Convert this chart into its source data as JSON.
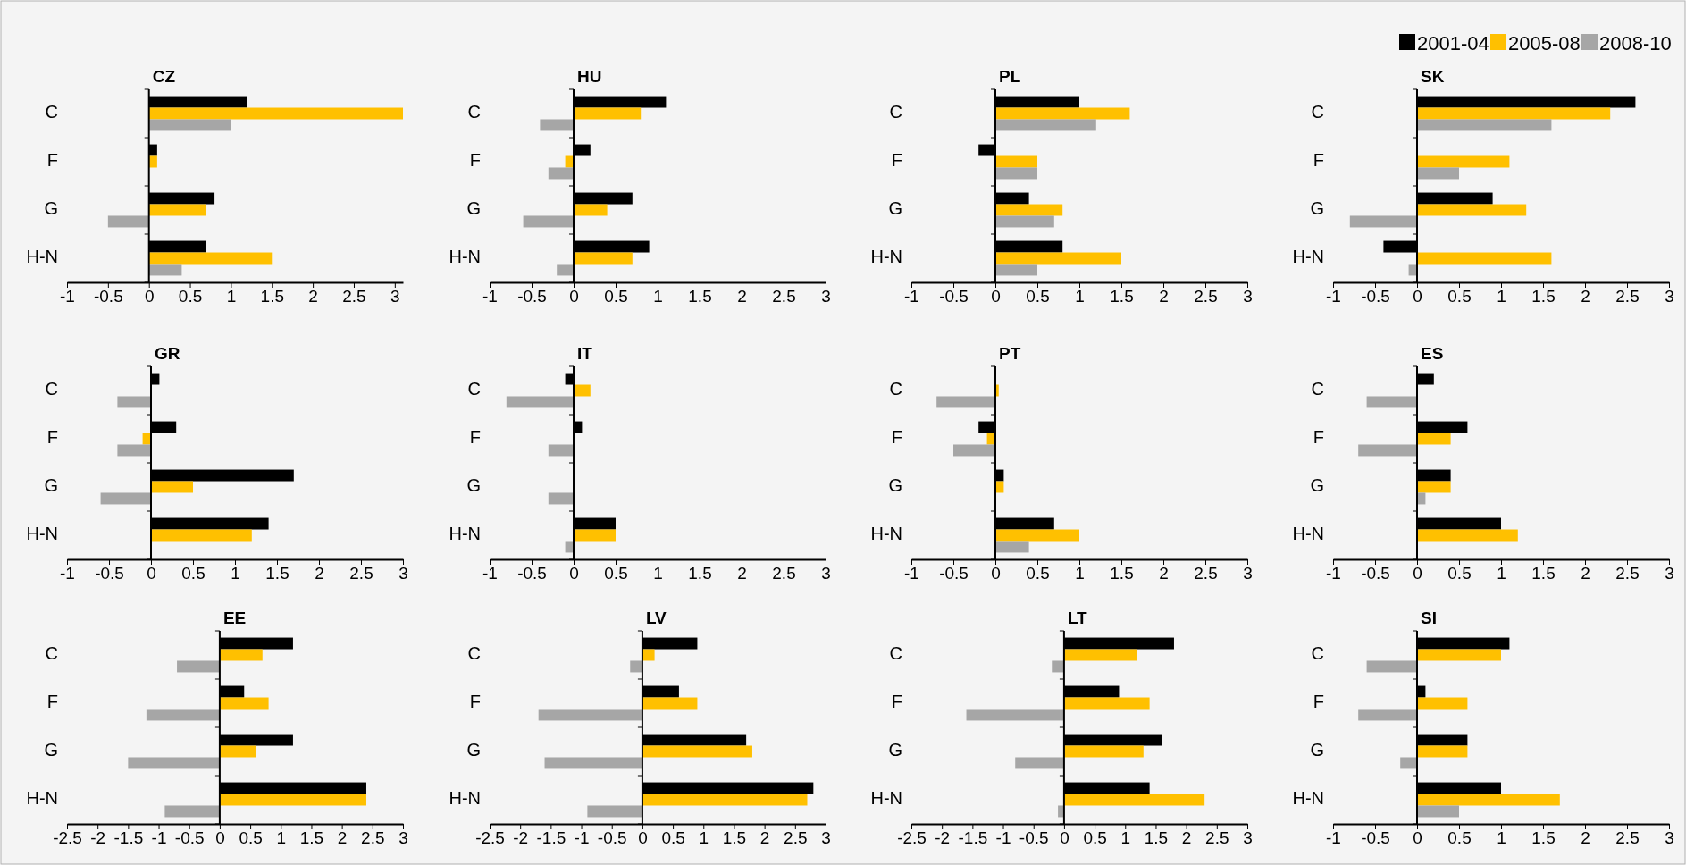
{
  "chart_data": [
    {
      "type": "bar",
      "orientation": "horizontal",
      "title": "CZ",
      "categories": [
        "C",
        "F",
        "G",
        "H-N"
      ],
      "xlim": [
        -1,
        3.1
      ],
      "xticks": [
        -1,
        -0.5,
        0,
        0.5,
        1,
        1.5,
        2,
        2.5,
        3
      ],
      "series": [
        {
          "color": "#000000",
          "values": [
            1.2,
            0.1,
            0.8,
            0.7
          ]
        },
        {
          "color": "#ffc000",
          "values": [
            3.1,
            0.1,
            0.7,
            1.5
          ]
        },
        {
          "color": "#a6a6a6",
          "values": [
            1.0,
            null,
            -0.5,
            0.4
          ]
        }
      ]
    },
    {
      "type": "bar",
      "orientation": "horizontal",
      "title": "HU",
      "categories": [
        "C",
        "F",
        "G",
        "H-N"
      ],
      "xlim": [
        -1,
        3
      ],
      "xticks": [
        -1,
        -0.5,
        0,
        0.5,
        1,
        1.5,
        2,
        2.5,
        3
      ],
      "series": [
        {
          "color": "#000000",
          "values": [
            1.1,
            0.2,
            0.7,
            0.9
          ]
        },
        {
          "color": "#ffc000",
          "values": [
            0.8,
            -0.1,
            0.4,
            0.7
          ]
        },
        {
          "color": "#a6a6a6",
          "values": [
            -0.4,
            -0.3,
            -0.6,
            -0.2
          ]
        }
      ]
    },
    {
      "type": "bar",
      "orientation": "horizontal",
      "title": "PL",
      "categories": [
        "C",
        "F",
        "G",
        "H-N"
      ],
      "xlim": [
        -1,
        3
      ],
      "xticks": [
        -1,
        -0.5,
        0,
        0.5,
        1,
        1.5,
        2,
        2.5,
        3
      ],
      "series": [
        {
          "color": "#000000",
          "values": [
            1.0,
            -0.2,
            0.4,
            0.8
          ]
        },
        {
          "color": "#ffc000",
          "values": [
            1.6,
            0.5,
            0.8,
            1.5
          ]
        },
        {
          "color": "#a6a6a6",
          "values": [
            1.2,
            0.5,
            0.7,
            0.5
          ]
        }
      ]
    },
    {
      "type": "bar",
      "orientation": "horizontal",
      "title": "SK",
      "categories": [
        "C",
        "F",
        "G",
        "H-N"
      ],
      "xlim": [
        -1,
        3
      ],
      "xticks": [
        -1,
        -0.5,
        0,
        0.5,
        1,
        1.5,
        2,
        2.5,
        3
      ],
      "legend": "top right",
      "series": [
        {
          "name": "2001-04",
          "color": "#000000",
          "values": [
            2.6,
            null,
            0.9,
            -0.4
          ]
        },
        {
          "name": "2005-08",
          "color": "#ffc000",
          "values": [
            2.3,
            1.1,
            1.3,
            1.6
          ]
        },
        {
          "name": "2008-10",
          "color": "#a6a6a6",
          "values": [
            1.6,
            0.5,
            -0.8,
            -0.1
          ]
        }
      ]
    },
    {
      "type": "bar",
      "orientation": "horizontal",
      "title": "GR",
      "categories": [
        "C",
        "F",
        "G",
        "H-N"
      ],
      "xlim": [
        -1,
        3
      ],
      "xticks": [
        -1,
        -0.5,
        0,
        0.5,
        1,
        1.5,
        2,
        2.5,
        3
      ],
      "series": [
        {
          "color": "#000000",
          "values": [
            0.1,
            0.3,
            1.7,
            1.4
          ]
        },
        {
          "color": "#ffc000",
          "values": [
            null,
            -0.1,
            0.5,
            1.2
          ]
        },
        {
          "color": "#a6a6a6",
          "values": [
            -0.4,
            -0.4,
            -0.6,
            null
          ]
        }
      ]
    },
    {
      "type": "bar",
      "orientation": "horizontal",
      "title": "IT",
      "categories": [
        "C",
        "F",
        "G",
        "H-N"
      ],
      "xlim": [
        -1,
        3
      ],
      "xticks": [
        -1,
        -0.5,
        0,
        0.5,
        1,
        1.5,
        2,
        2.5,
        3
      ],
      "series": [
        {
          "color": "#000000",
          "values": [
            -0.1,
            0.1,
            null,
            0.5
          ]
        },
        {
          "color": "#ffc000",
          "values": [
            0.2,
            null,
            null,
            0.5
          ]
        },
        {
          "color": "#a6a6a6",
          "values": [
            -0.8,
            -0.3,
            -0.3,
            -0.1
          ]
        }
      ]
    },
    {
      "type": "bar",
      "orientation": "horizontal",
      "title": "PT",
      "categories": [
        "C",
        "F",
        "G",
        "H-N"
      ],
      "xlim": [
        -1,
        3
      ],
      "xticks": [
        -1,
        -0.5,
        0,
        0.5,
        1,
        1.5,
        2,
        2.5,
        3
      ],
      "series": [
        {
          "color": "#000000",
          "values": [
            null,
            -0.2,
            0.1,
            0.7
          ]
        },
        {
          "color": "#ffc000",
          "values": [
            0.04,
            -0.1,
            0.1,
            1.0
          ]
        },
        {
          "color": "#a6a6a6",
          "values": [
            -0.7,
            -0.5,
            null,
            0.4
          ]
        }
      ]
    },
    {
      "type": "bar",
      "orientation": "horizontal",
      "title": "ES",
      "categories": [
        "C",
        "F",
        "G",
        "H-N"
      ],
      "xlim": [
        -1,
        3
      ],
      "xticks": [
        -1,
        -0.5,
        0,
        0.5,
        1,
        1.5,
        2,
        2.5,
        3
      ],
      "series": [
        {
          "color": "#000000",
          "values": [
            0.2,
            0.6,
            0.4,
            1.0
          ]
        },
        {
          "color": "#ffc000",
          "values": [
            null,
            0.4,
            0.4,
            1.2
          ]
        },
        {
          "color": "#a6a6a6",
          "values": [
            -0.6,
            -0.7,
            0.1,
            null
          ]
        }
      ]
    },
    {
      "type": "bar",
      "orientation": "horizontal",
      "title": "EE",
      "categories": [
        "C",
        "F",
        "G",
        "H-N"
      ],
      "xlim": [
        -2.5,
        3
      ],
      "xticks": [
        -2.5,
        -2,
        -1.5,
        -1,
        -0.5,
        0,
        0.5,
        1,
        1.5,
        2,
        2.5,
        3
      ],
      "series": [
        {
          "color": "#000000",
          "values": [
            1.2,
            0.4,
            1.2,
            2.4
          ]
        },
        {
          "color": "#ffc000",
          "values": [
            0.7,
            0.8,
            0.6,
            2.4
          ]
        },
        {
          "color": "#a6a6a6",
          "values": [
            -0.7,
            -1.2,
            -1.5,
            -0.9
          ]
        }
      ]
    },
    {
      "type": "bar",
      "orientation": "horizontal",
      "title": "LV",
      "categories": [
        "C",
        "F",
        "G",
        "H-N"
      ],
      "xlim": [
        -2.5,
        3
      ],
      "xticks": [
        -2.5,
        -2,
        -1.5,
        -1,
        -0.5,
        0,
        0.5,
        1,
        1.5,
        2,
        2.5,
        3
      ],
      "series": [
        {
          "color": "#000000",
          "values": [
            0.9,
            0.6,
            1.7,
            2.8
          ]
        },
        {
          "color": "#ffc000",
          "values": [
            0.2,
            0.9,
            1.8,
            2.7
          ]
        },
        {
          "color": "#a6a6a6",
          "values": [
            -0.2,
            -1.7,
            -1.6,
            -0.9
          ]
        }
      ]
    },
    {
      "type": "bar",
      "orientation": "horizontal",
      "title": "LT",
      "categories": [
        "C",
        "F",
        "G",
        "H-N"
      ],
      "xlim": [
        -2.5,
        3
      ],
      "xticks": [
        -2.5,
        -2,
        -1.5,
        -1,
        -0.5,
        0,
        0.5,
        1,
        1.5,
        2,
        2.5,
        3
      ],
      "series": [
        {
          "color": "#000000",
          "values": [
            1.8,
            0.9,
            1.6,
            1.4
          ]
        },
        {
          "color": "#ffc000",
          "values": [
            1.2,
            1.4,
            1.3,
            2.3
          ]
        },
        {
          "color": "#a6a6a6",
          "values": [
            -0.2,
            -1.6,
            -0.8,
            -0.1
          ]
        }
      ]
    },
    {
      "type": "bar",
      "orientation": "horizontal",
      "title": "SI",
      "categories": [
        "C",
        "F",
        "G",
        "H-N"
      ],
      "xlim": [
        -1,
        3
      ],
      "xticks": [
        -1,
        -0.5,
        0,
        0.5,
        1,
        1.5,
        2,
        2.5,
        3
      ],
      "series": [
        {
          "color": "#000000",
          "values": [
            1.1,
            0.1,
            0.6,
            1.0
          ]
        },
        {
          "color": "#ffc000",
          "values": [
            1.0,
            0.6,
            0.6,
            1.7
          ]
        },
        {
          "color": "#a6a6a6",
          "values": [
            -0.6,
            -0.7,
            -0.2,
            0.5
          ]
        }
      ]
    }
  ]
}
